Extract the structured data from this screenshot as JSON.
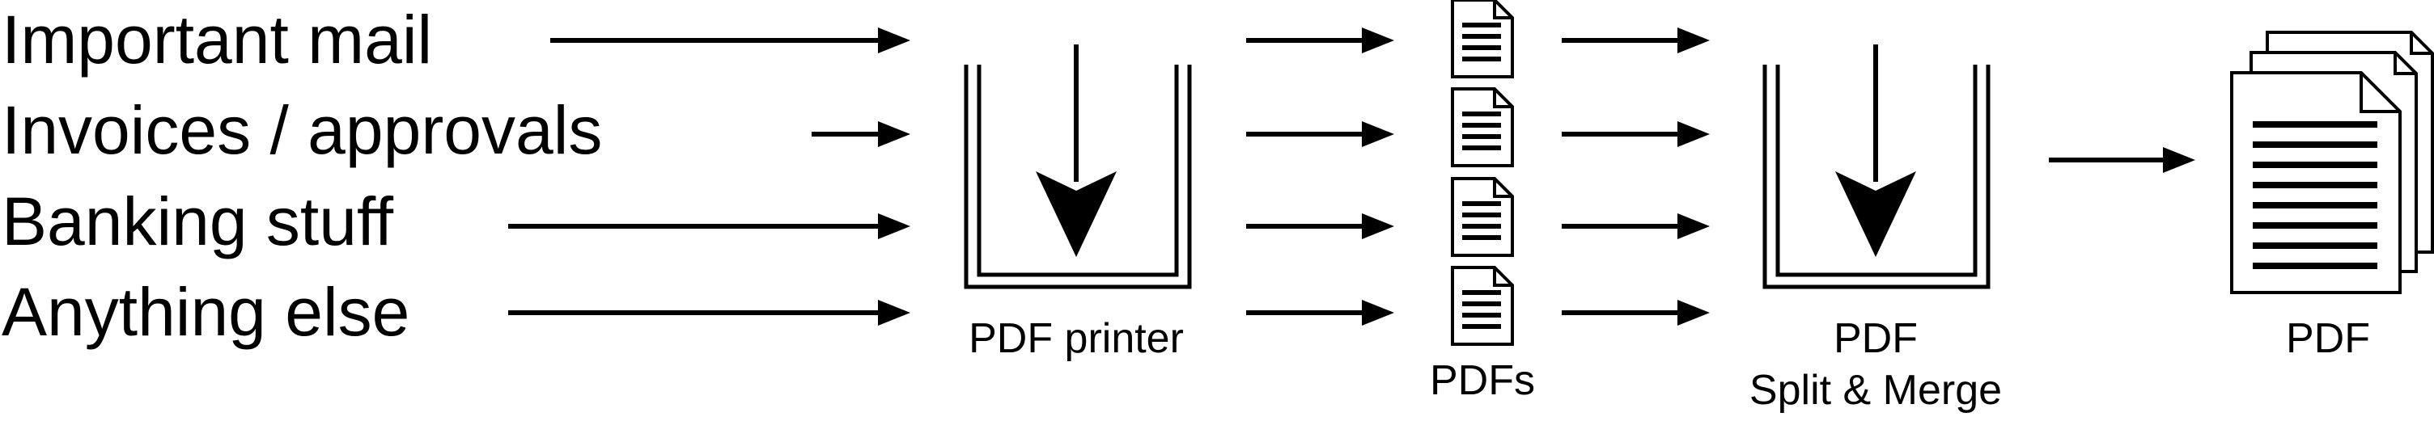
{
  "sources": [
    {
      "label": "Important mail"
    },
    {
      "label": "Invoices / approvals"
    },
    {
      "label": "Banking stuff"
    },
    {
      "label": "Anything else"
    }
  ],
  "printer": {
    "label": "PDF printer"
  },
  "pdfs": {
    "label": "PDFs",
    "count": 4
  },
  "merger": {
    "line1": "PDF",
    "line2": "Split & Merge"
  },
  "output": {
    "label": "PDF"
  }
}
